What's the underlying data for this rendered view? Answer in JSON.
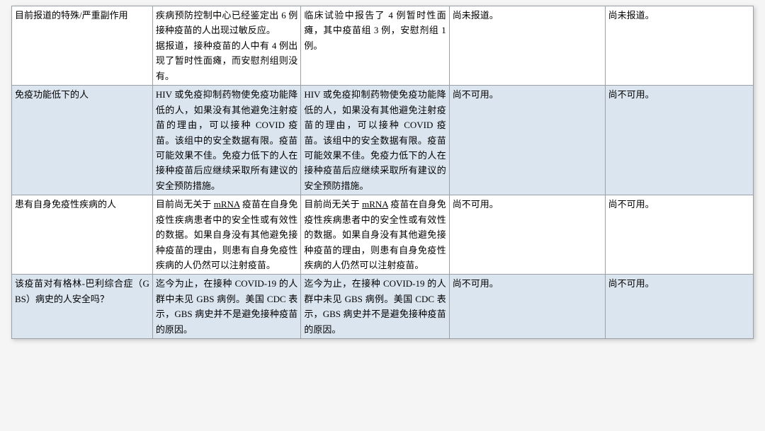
{
  "table": {
    "border_color": "#9aa0a6",
    "shaded_bg": "#dbe5ef",
    "plain_bg": "#ffffff",
    "font_family": "SimSun",
    "font_size_pt": 10,
    "line_height": 1.65,
    "column_widths_pct": [
      19,
      20,
      20,
      21,
      20
    ],
    "rows": [
      {
        "shaded": false,
        "cells": [
          "目前报道的特殊/严重副作用",
          "疾病预防控制中心已经鉴定出 6 例接种疫苗的人出现过敏反应。\n据报道，接种疫苗的人中有 4 例出现了暂时性面瘫，而安慰剂组则没有。",
          "临床试验中报告了 4 例暂时性面瘫，其中疫苗组 3 例，安慰剂组 1 例。",
          "尚未报道。",
          "尚未报道。"
        ]
      },
      {
        "shaded": true,
        "cells": [
          "免疫功能低下的人",
          "HIV 或免疫抑制药物使免疫功能降低的人，如果没有其他避免注射疫苗的理由，可以接种 COVID 疫苗。该组中的安全数据有限。疫苗可能效果不佳。免疫力低下的人在接种疫苗后应继续采取所有建议的安全预防措施。",
          "HIV 或免疫抑制药物使免疫功能降低的人，如果没有其他避免注射疫苗的理由，可以接种 COVID 疫苗。该组中的安全数据有限。疫苗可能效果不佳。免疫力低下的人在接种疫苗后应继续采取所有建议的安全预防措施。",
          "尚不可用。",
          "尚不可用。"
        ]
      },
      {
        "shaded": false,
        "underline_term": "mRNA",
        "cells": [
          "患有自身免疫性疾病的人",
          "目前尚无关于 mRNA 疫苗在自身免疫性疾病患者中的安全性或有效性的数据。如果自身没有其他避免接种疫苗的理由，则患有自身免疫性疾病的人仍然可以注射疫苗。",
          "目前尚无关于 mRNA 疫苗在自身免疫性疾病患者中的安全性或有效性的数据。如果自身没有其他避免接种疫苗的理由，则患有自身免疫性疾病的人仍然可以注射疫苗。",
          "尚不可用。",
          "尚不可用。"
        ]
      },
      {
        "shaded": true,
        "cells": [
          "该疫苗对有格林-巴利综合症（GBS）病史的人安全吗？",
          "迄今为止，在接种 COVID-19 的人群中未见 GBS 病例。美国 CDC 表示，GBS 病史并不是避免接种疫苗的原因。",
          "迄今为止，在接种 COVID-19 的人群中未见 GBS 病例。美国 CDC 表示，GBS 病史并不是避免接种疫苗的原因。",
          "尚不可用。",
          "尚不可用。"
        ]
      }
    ]
  }
}
